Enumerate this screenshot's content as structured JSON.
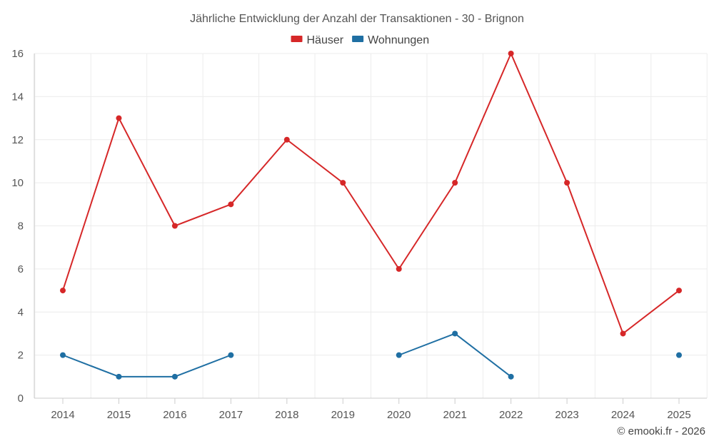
{
  "chart_data": {
    "type": "line",
    "title": "Jährliche Entwicklung der Anzahl der Transaktionen - 30 - Brignon",
    "xlabel": "",
    "ylabel": "",
    "x": [
      "2014",
      "2015",
      "2016",
      "2017",
      "2018",
      "2019",
      "2020",
      "2021",
      "2022",
      "2023",
      "2024",
      "2025"
    ],
    "ylim": [
      0,
      16
    ],
    "yticks": [
      0,
      2,
      4,
      6,
      8,
      10,
      12,
      14,
      16
    ],
    "grid": true,
    "legend_position": "top-center",
    "series": [
      {
        "name": "Häuser",
        "color": "#d62728",
        "values": [
          5,
          13,
          8,
          9,
          12,
          10,
          6,
          10,
          16,
          10,
          3,
          5
        ]
      },
      {
        "name": "Wohnungen",
        "color": "#1f6fa3",
        "values": [
          2,
          1,
          1,
          2,
          null,
          null,
          2,
          3,
          1,
          null,
          null,
          2
        ]
      }
    ]
  },
  "credit": "© emooki.fr - 2026"
}
